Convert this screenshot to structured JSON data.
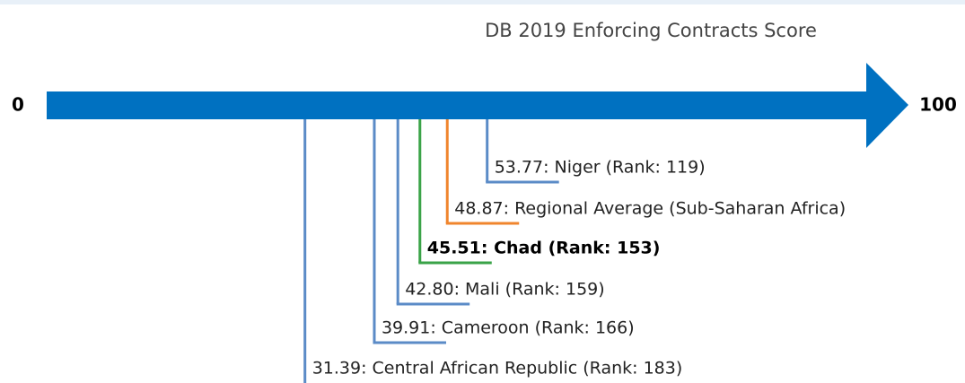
{
  "chart_data": {
    "type": "scale-markers",
    "title": "DB 2019 Enforcing Contracts Score",
    "xlim": [
      0,
      100
    ],
    "xticks": [
      0,
      100
    ],
    "values": [
      53.77,
      48.87,
      45.51,
      42.8,
      39.91,
      31.39
    ],
    "value_labels": [
      "53.77: Niger (Rank: 119)",
      "48.87: Regional Average (Sub-Saharan Africa)",
      "45.51: Chad (Rank: 153)",
      "42.80: Mali (Rank: 159)",
      "39.91: Cameroon (Rank: 166)",
      "31.39: Central African Republic (Rank: 183)"
    ],
    "colors": [
      "#5b8bc7",
      "#f0852d",
      "#3aa348",
      "#5b8bc7",
      "#5b8bc7",
      "#5b8bc7"
    ],
    "bold": [
      false,
      false,
      true,
      false,
      false,
      false
    ],
    "arrow_color": "#0071c1"
  }
}
